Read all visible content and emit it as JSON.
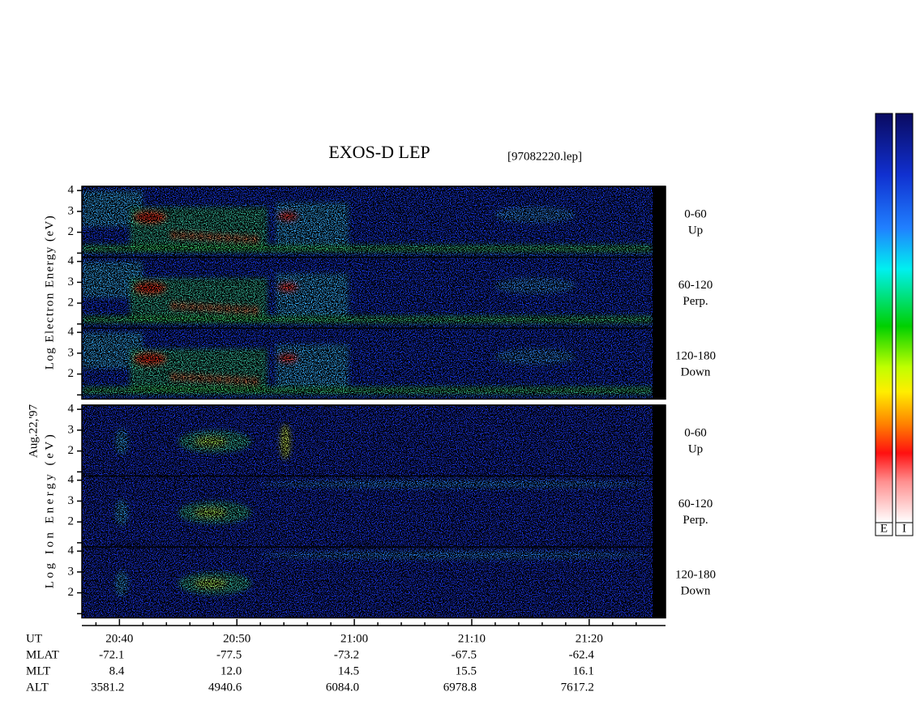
{
  "chart_data": {
    "type": "spectrogram",
    "title": "EXOS-D LEP",
    "subtitle": "[97082220.lep]",
    "date_label": "Aug.22,'97",
    "groups": [
      {
        "ylabel": "Log  Electron  Energy (eV)",
        "panels": [
          {
            "label": "0-60",
            "sublabel": "Up"
          },
          {
            "label": "60-120",
            "sublabel": "Perp."
          },
          {
            "label": "120-180",
            "sublabel": "Down"
          }
        ]
      },
      {
        "ylabel": "Log  Ion  Energy (eV)",
        "panels": [
          {
            "label": "0-60",
            "sublabel": "Up"
          },
          {
            "label": "60-120",
            "sublabel": "Perp."
          },
          {
            "label": "120-180",
            "sublabel": "Down"
          }
        ]
      }
    ],
    "ylim": [
      0.8,
      4.2
    ],
    "yticks": [
      2,
      3,
      4
    ],
    "yminorticks": [
      1
    ],
    "xlim": [
      36.8,
      86.5
    ],
    "xticks": [
      {
        "value": 40,
        "label": "20:40"
      },
      {
        "value": 50,
        "label": "20:50"
      },
      {
        "value": 60,
        "label": "21:00"
      },
      {
        "value": 70,
        "label": "21:10"
      },
      {
        "value": 80,
        "label": "21:20"
      }
    ],
    "xminorticks": [
      38,
      42,
      44,
      46,
      48,
      52,
      54,
      56,
      58,
      62,
      64,
      66,
      68,
      72,
      74,
      76,
      78,
      82,
      84
    ],
    "ephemeris": {
      "time_label": "UT",
      "rows": [
        {
          "name": "MLAT",
          "values": [
            "-72.1",
            "-77.5",
            "-73.2",
            "-67.5",
            "-62.4"
          ]
        },
        {
          "name": "MLT",
          "values": [
            "8.4",
            "12.0",
            "14.5",
            "15.5",
            "16.1"
          ]
        },
        {
          "name": "ALT",
          "values": [
            "3581.2",
            "4940.6",
            "6084.0",
            "6978.8",
            "7617.2"
          ]
        }
      ]
    },
    "colorbars": [
      "E",
      "I"
    ]
  }
}
